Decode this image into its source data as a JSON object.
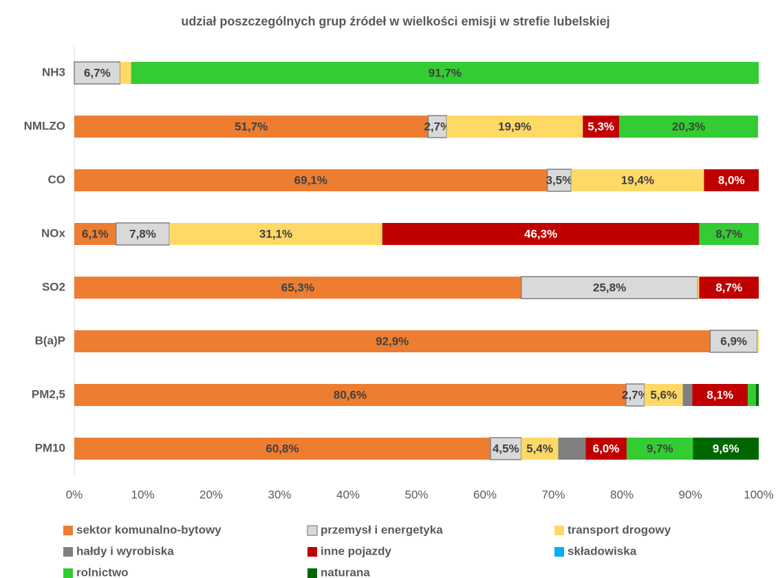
{
  "chart_data": {
    "type": "stacked-barh",
    "title": "udział poszczególnych grup źródeł w wielkości emisji w strefie lubelskiej",
    "categories": [
      "NH3",
      "NMLZO",
      "CO",
      "NOx",
      "SO2",
      "B(a)P",
      "PM2,5",
      "PM10"
    ],
    "xlim": [
      0,
      100
    ],
    "xticks": [
      {
        "value": 0,
        "label": "0%"
      },
      {
        "value": 10,
        "label": "10%"
      },
      {
        "value": 20,
        "label": "20%"
      },
      {
        "value": 30,
        "label": "30%"
      },
      {
        "value": 40,
        "label": "40%"
      },
      {
        "value": 50,
        "label": "50%"
      },
      {
        "value": 60,
        "label": "60%"
      },
      {
        "value": 70,
        "label": "70%"
      },
      {
        "value": 80,
        "label": "80%"
      },
      {
        "value": 90,
        "label": "90%"
      },
      {
        "value": 100,
        "label": "100%"
      }
    ],
    "legend": "bottom",
    "series": [
      {
        "name": "sektor komunalno-bytowy",
        "color": "#ed7d31",
        "values": [
          0,
          51.7,
          69.1,
          6.1,
          65.3,
          92.9,
          80.6,
          60.8
        ],
        "value_labels": [
          null,
          "51,7%",
          "69,1%",
          "6,1%",
          "65,3%",
          "92,9%",
          "80,6%",
          "60,8%"
        ]
      },
      {
        "name": "przemysł i energetyka",
        "color": "#d9d9d9",
        "values": [
          6.7,
          2.7,
          3.5,
          7.8,
          25.8,
          6.9,
          2.7,
          4.5
        ],
        "value_labels": [
          "6,7%",
          "2,7%",
          "3,5%",
          "7,8%",
          "25,8%",
          "6,9%",
          "2,7%",
          "4,5%"
        ]
      },
      {
        "name": "transport drogowy",
        "color": "#ffd966",
        "values": [
          1.6,
          19.9,
          19.4,
          31.1,
          0.2,
          0.2,
          5.6,
          5.4
        ],
        "value_labels": [
          null,
          "19,9%",
          "19,4%",
          "31,1%",
          null,
          null,
          "5,6%",
          "5,4%"
        ]
      },
      {
        "name": "hałdy i wyrobiska",
        "color": "#808080",
        "values": [
          0,
          0,
          0,
          0,
          0,
          0,
          1.4,
          4.0
        ],
        "value_labels": [
          null,
          null,
          null,
          null,
          null,
          null,
          null,
          null
        ]
      },
      {
        "name": "inne pojazdy",
        "color": "#c00000",
        "values": [
          0,
          5.3,
          8.0,
          46.3,
          8.7,
          0,
          8.1,
          6.0
        ],
        "value_labels": [
          null,
          "5,3%",
          "8,0%",
          "46,3%",
          "8,7%",
          null,
          "8,1%",
          "6,0%"
        ]
      },
      {
        "name": "składowiska",
        "color": "#00b0f0",
        "values": [
          0,
          0,
          0,
          0,
          0,
          0,
          0,
          0
        ],
        "value_labels": [
          null,
          null,
          null,
          null,
          null,
          null,
          null,
          null
        ]
      },
      {
        "name": "rolnictwo",
        "color": "#33cc33",
        "values": [
          91.7,
          20.3,
          0,
          8.7,
          0,
          0,
          1.2,
          9.7
        ],
        "value_labels": [
          "91,7%",
          "20,3%",
          null,
          "8,7%",
          null,
          null,
          null,
          "9,7%"
        ]
      },
      {
        "name": "naturana",
        "color": "#006600",
        "values": [
          0,
          0,
          0,
          0,
          0,
          0,
          0.4,
          9.6
        ],
        "value_labels": [
          null,
          null,
          null,
          null,
          null,
          null,
          null,
          "9,6%"
        ]
      }
    ]
  }
}
